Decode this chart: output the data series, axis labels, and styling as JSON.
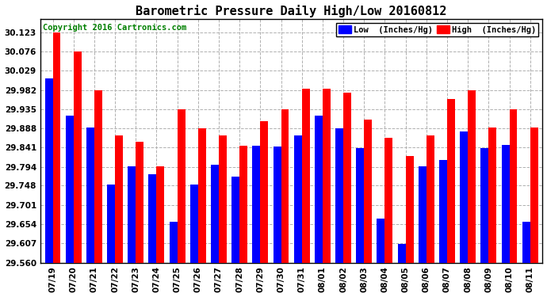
{
  "title": "Barometric Pressure Daily High/Low 20160812",
  "copyright": "Copyright 2016 Cartronics.com",
  "legend_low": "Low  (Inches/Hg)",
  "legend_high": "High  (Inches/Hg)",
  "dates": [
    "07/19",
    "07/20",
    "07/21",
    "07/22",
    "07/23",
    "07/24",
    "07/25",
    "07/26",
    "07/27",
    "07/28",
    "07/29",
    "07/30",
    "07/31",
    "08/01",
    "08/02",
    "08/03",
    "08/04",
    "08/05",
    "08/06",
    "08/07",
    "08/08",
    "08/09",
    "08/10",
    "08/11"
  ],
  "low": [
    30.01,
    29.92,
    29.89,
    29.75,
    29.795,
    29.775,
    29.66,
    29.75,
    29.8,
    29.77,
    29.845,
    29.843,
    29.87,
    29.92,
    29.888,
    29.84,
    29.668,
    29.605,
    29.795,
    29.81,
    29.88,
    29.84,
    29.847,
    29.66
  ],
  "high": [
    30.123,
    30.076,
    29.982,
    29.87,
    29.855,
    29.795,
    29.935,
    29.888,
    29.87,
    29.845,
    29.905,
    29.935,
    29.985,
    29.985,
    29.975,
    29.91,
    29.865,
    29.82,
    29.87,
    29.96,
    29.982,
    29.89,
    29.935,
    29.89
  ],
  "ylim_min": 29.56,
  "ylim_max": 30.155,
  "yticks": [
    29.56,
    29.607,
    29.654,
    29.701,
    29.748,
    29.794,
    29.841,
    29.888,
    29.935,
    29.982,
    30.029,
    30.076,
    30.123
  ],
  "bar_width": 0.38,
  "low_color": "#0000ff",
  "high_color": "#ff0000",
  "bg_color": "#ffffff",
  "grid_color": "#b0b0b0",
  "title_fontsize": 11,
  "tick_fontsize": 7.5,
  "copyright_fontsize": 7.5
}
